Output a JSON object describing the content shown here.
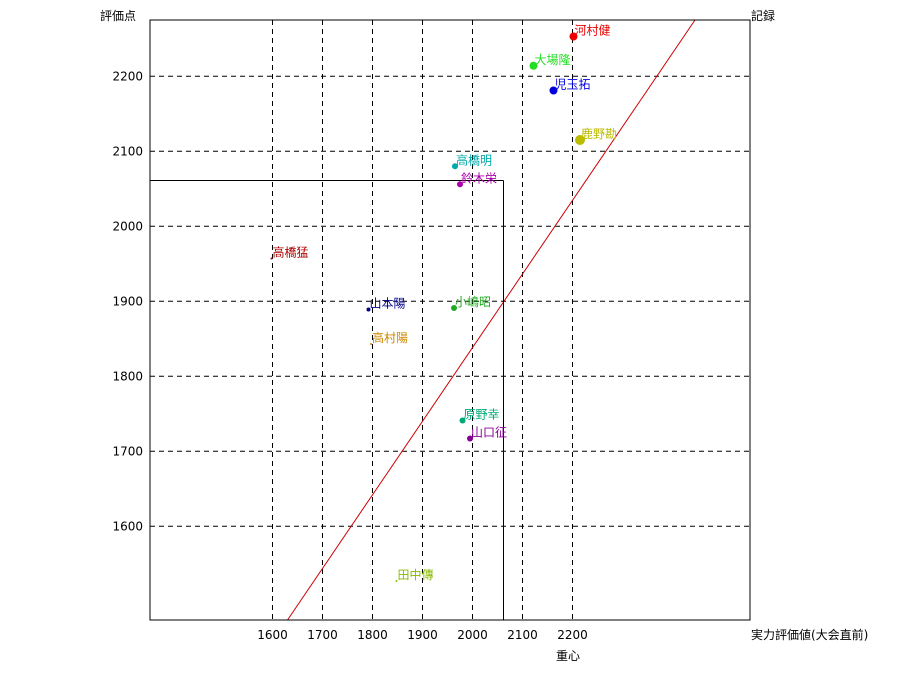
{
  "chart_data": {
    "type": "scatter",
    "ylabel": "評価点",
    "ylabel_right": "記録",
    "xlabel_right": "実力評価値(大会直前)",
    "xlabel_bottom": "重心",
    "xlim": [
      1355,
      2555
    ],
    "ylim": [
      1475,
      2275
    ],
    "x_ticks": [
      1600,
      1700,
      1800,
      1900,
      2000,
      2100,
      2200
    ],
    "x_tick_labels": [
      "1600",
      "1700",
      "1800",
      "1900",
      "2000",
      "2100",
      "2200"
    ],
    "x_gridlines": [
      1600,
      1700,
      1800,
      1900,
      2000,
      2100,
      2200
    ],
    "y_ticks": [
      1600,
      1700,
      1800,
      1900,
      2000,
      2100,
      2200
    ],
    "y_tick_labels": [
      "1600",
      "1700",
      "1800",
      "1900",
      "2000",
      "2100",
      "2200"
    ],
    "grid": true,
    "diagonal_line": {
      "from": [
        1630,
        1475
      ],
      "to": [
        2445,
        2275
      ],
      "color": "#cc0000"
    },
    "centroid": {
      "x": 2062,
      "y": 2061
    },
    "points": [
      {
        "label": "河村健",
        "x": 2202,
        "y": 2253,
        "color": "#ee0000",
        "size": 4
      },
      {
        "label": "大場隆",
        "x": 2122,
        "y": 2214,
        "color": "#22dd22",
        "size": 4
      },
      {
        "label": "児玉拓",
        "x": 2162,
        "y": 2181,
        "color": "#0000dd",
        "size": 4
      },
      {
        "label": "鹿野勘",
        "x": 2215,
        "y": 2115,
        "color": "#bbbb00",
        "size": 5
      },
      {
        "label": "高橋明",
        "x": 1965,
        "y": 2080,
        "color": "#00aaaa",
        "size": 3
      },
      {
        "label": "鈴木栄",
        "x": 1975,
        "y": 2056,
        "color": "#aa00aa",
        "size": 3
      },
      {
        "label": "高橋猛",
        "x": 1598,
        "y": 1957,
        "color": "#aa0000",
        "size": 1
      },
      {
        "label": "山本陽",
        "x": 1792,
        "y": 1889,
        "color": "#000088",
        "size": 2
      },
      {
        "label": "小嶋昭",
        "x": 1963,
        "y": 1891,
        "color": "#22aa22",
        "size": 3
      },
      {
        "label": "高村陽",
        "x": 1797,
        "y": 1843,
        "color": "#cc8800",
        "size": 1
      },
      {
        "label": "原野幸",
        "x": 1980,
        "y": 1741,
        "color": "#00aa77",
        "size": 3
      },
      {
        "label": "山口征",
        "x": 1995,
        "y": 1717,
        "color": "#880099",
        "size": 3
      },
      {
        "label": "田中傳",
        "x": 1848,
        "y": 1527,
        "color": "#88bb00",
        "size": 1
      }
    ]
  }
}
